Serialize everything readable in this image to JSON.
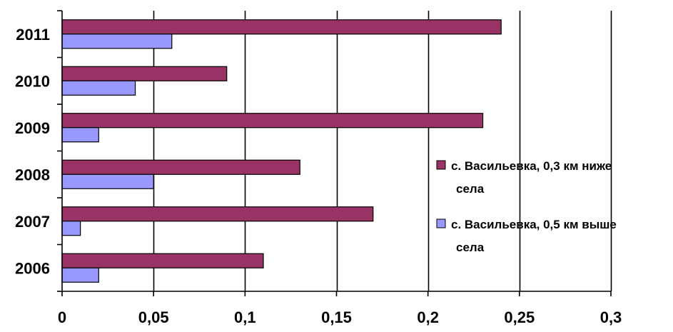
{
  "chart_data": {
    "type": "bar",
    "orientation": "horizontal",
    "categories": [
      "2006",
      "2007",
      "2008",
      "2009",
      "2010",
      "2011"
    ],
    "series": [
      {
        "name": "с. Васильевка, 0,3 км ниже села",
        "values": [
          0.11,
          0.17,
          0.13,
          0.23,
          0.09,
          0.24
        ],
        "color": "#993366"
      },
      {
        "name": "с. Васильевка, 0,5 км выше села",
        "values": [
          0.02,
          0.01,
          0.05,
          0.02,
          0.04,
          0.06
        ],
        "color": "#9999ff"
      }
    ],
    "xlim": [
      0,
      0.3
    ],
    "x_ticks": [
      0,
      0.05,
      0.1,
      0.15,
      0.2,
      0.25,
      0.3
    ],
    "x_tick_labels": [
      "0",
      "0,05",
      "0,1",
      "0,15",
      "0,2",
      "0,25",
      "0,3"
    ],
    "grid": "vertical",
    "legend_position": "right",
    "legend": [
      {
        "lines": [
          "с. Васильевка, 0,3 км ниже",
          "села"
        ]
      },
      {
        "lines": [
          "с. Васильевка, 0,5 км выше",
          "села"
        ]
      }
    ]
  }
}
